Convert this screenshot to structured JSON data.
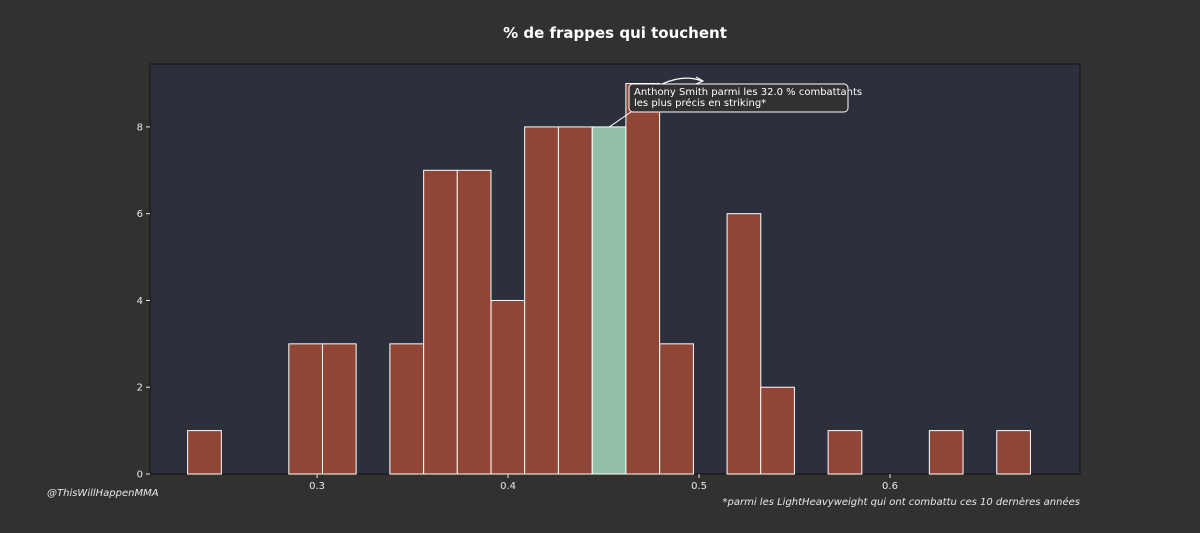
{
  "chart_data": {
    "type": "bar",
    "title": "% de frappes qui touchent",
    "xlabel": "",
    "ylabel": "",
    "xlim": [
      0.2125,
      0.6995
    ],
    "ylim": [
      0,
      9.45
    ],
    "bin_width": 0.01765,
    "x_ticks": [
      0.3,
      0.4,
      0.5,
      0.6
    ],
    "x_tick_labels": [
      "0.3",
      "0.4",
      "0.5",
      "0.6"
    ],
    "y_ticks": [
      0,
      2,
      4,
      6,
      8
    ],
    "y_tick_labels": [
      "0",
      "2",
      "4",
      "6",
      "8"
    ],
    "bins": [
      {
        "x": 0.2322,
        "value": 1
      },
      {
        "x": 0.2852,
        "value": 3
      },
      {
        "x": 0.3028,
        "value": 3
      },
      {
        "x": 0.3381,
        "value": 3
      },
      {
        "x": 0.3558,
        "value": 7
      },
      {
        "x": 0.3734,
        "value": 7
      },
      {
        "x": 0.3911,
        "value": 4
      },
      {
        "x": 0.4087,
        "value": 8
      },
      {
        "x": 0.4264,
        "value": 8
      },
      {
        "x": 0.4441,
        "value": 8,
        "highlight": true
      },
      {
        "x": 0.4617,
        "value": 9
      },
      {
        "x": 0.4794,
        "value": 3
      },
      {
        "x": 0.5147,
        "value": 6
      },
      {
        "x": 0.5323,
        "value": 2
      },
      {
        "x": 0.5676,
        "value": 1
      },
      {
        "x": 0.6206,
        "value": 1
      },
      {
        "x": 0.6559,
        "value": 1
      }
    ],
    "grid": false,
    "annotation": {
      "text_line1": "Anthony Smith parmi les 32.0 % combattants",
      "text_line2": "les plus précis en striking*",
      "points_to_x": 0.453,
      "points_to_y": 8
    },
    "colors": {
      "bar": "#8f4637",
      "highlight_bar": "#93bfa9",
      "bar_edge": "#ffffff",
      "plot_bg": "#2c303c",
      "figure_bg": "#32312f"
    }
  },
  "footer": {
    "credit": "@ThisWillHappenMMA",
    "note": "*parmi les LightHeavyweight qui ont combattu ces 10 dernères années"
  }
}
